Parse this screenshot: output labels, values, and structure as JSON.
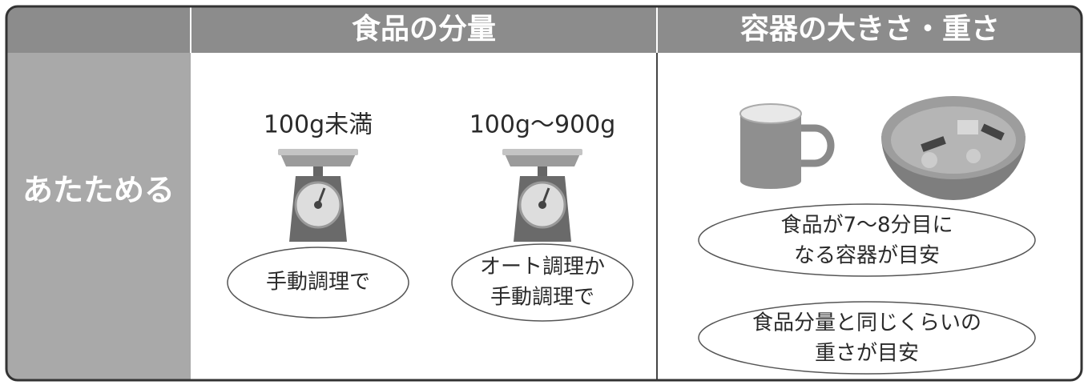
{
  "table": {
    "header": {
      "quantity": "食品の分量",
      "container": "容器の大きさ・重さ"
    },
    "row": {
      "label": "あたためる",
      "scales": [
        {
          "weight": "100g未満",
          "note": [
            "手動調理で"
          ]
        },
        {
          "weight": "100g〜900g",
          "note": [
            "オート調理か",
            "手動調理で"
          ]
        }
      ],
      "container_notes": [
        [
          "食品が7〜8分目に",
          "なる容器が目安"
        ],
        [
          "食品分量と同じくらいの",
          "重さが目安"
        ]
      ]
    }
  }
}
